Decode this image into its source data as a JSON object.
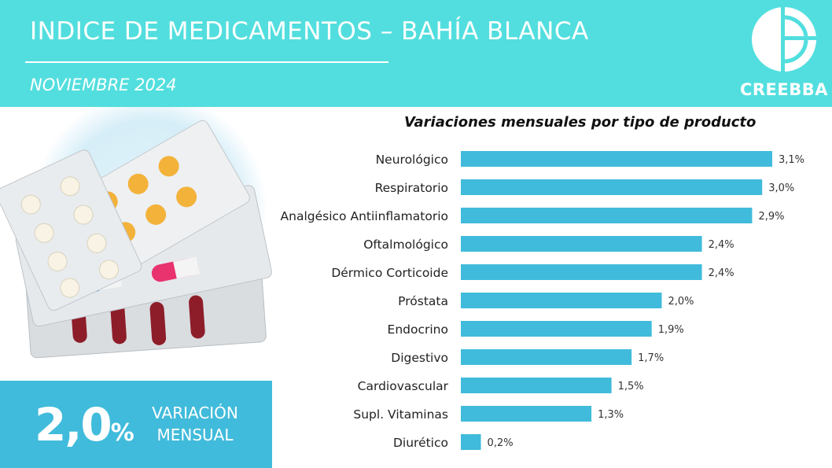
{
  "header": {
    "title": "INDICE DE MEDICAMENTOS – BAHÍA BLANCA",
    "subtitle": "NOVIEMBRE 2024",
    "brand": "CREEBBA"
  },
  "summary": {
    "value": "2,0",
    "unit": "%",
    "label_line1": "VARIACIÓN",
    "label_line2": "MENSUAL"
  },
  "colors": {
    "header_bg": "#52dede",
    "bar": "#41bbdb",
    "stat_bg": "#41bbdb"
  },
  "chart_data": {
    "type": "bar",
    "orientation": "horizontal",
    "title": "Variaciones mensuales por tipo de producto",
    "categories": [
      "Neurológico",
      "Respiratorio",
      "Analgésico Antiinflamatorio",
      "Oftalmológico",
      "Dérmico Corticoide",
      "Próstata",
      "Endocrino",
      "Digestivo",
      "Cardiovascular",
      "Supl. Vitaminas",
      "Diurético"
    ],
    "values": [
      3.1,
      3.0,
      2.9,
      2.4,
      2.4,
      2.0,
      1.9,
      1.7,
      1.5,
      1.3,
      0.2
    ],
    "value_labels": [
      "3,1%",
      "3,0%",
      "2,9%",
      "2,4%",
      "2,4%",
      "2,0%",
      "1,9%",
      "1,7%",
      "1,5%",
      "1,3%",
      "0,2%"
    ],
    "xlim": [
      0,
      3.1
    ],
    "grid": false,
    "legend": "none"
  }
}
